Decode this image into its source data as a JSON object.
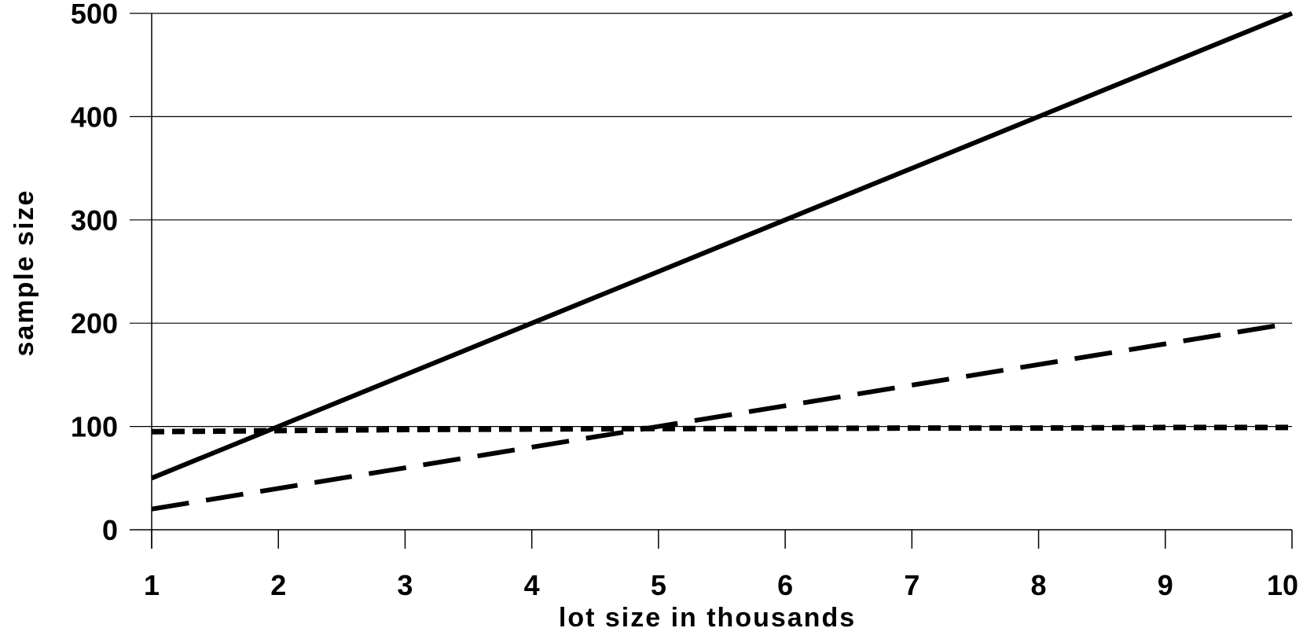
{
  "chart_data": {
    "type": "line",
    "title": "",
    "xlabel": "lot size in thousands",
    "ylabel": "sample size",
    "x": [
      1,
      2,
      3,
      4,
      5,
      6,
      7,
      8,
      9,
      10
    ],
    "xlim": [
      1,
      10
    ],
    "ylim": [
      0,
      500
    ],
    "x_ticks": [
      "1",
      "2",
      "3",
      "4",
      "5",
      "6",
      "7",
      "8",
      "9",
      "10"
    ],
    "y_ticks": [
      "0",
      "100",
      "200",
      "300",
      "400",
      "500"
    ],
    "y_tick_values": [
      0,
      100,
      200,
      300,
      400,
      500
    ],
    "grid": "horizontal",
    "legend": "none",
    "series": [
      {
        "style": "solid",
        "values": [
          50,
          100,
          150,
          200,
          250,
          300,
          350,
          400,
          450,
          500
        ]
      },
      {
        "style": "dashed",
        "values": [
          20,
          40,
          60,
          80,
          100,
          120,
          140,
          160,
          180,
          200
        ]
      },
      {
        "style": "dotted",
        "values": [
          95,
          96,
          97,
          97.5,
          98,
          98,
          98.5,
          98.5,
          99,
          99
        ]
      }
    ],
    "colors": {
      "line": "#000000",
      "grid": "#000000",
      "background": "#ffffff"
    }
  }
}
